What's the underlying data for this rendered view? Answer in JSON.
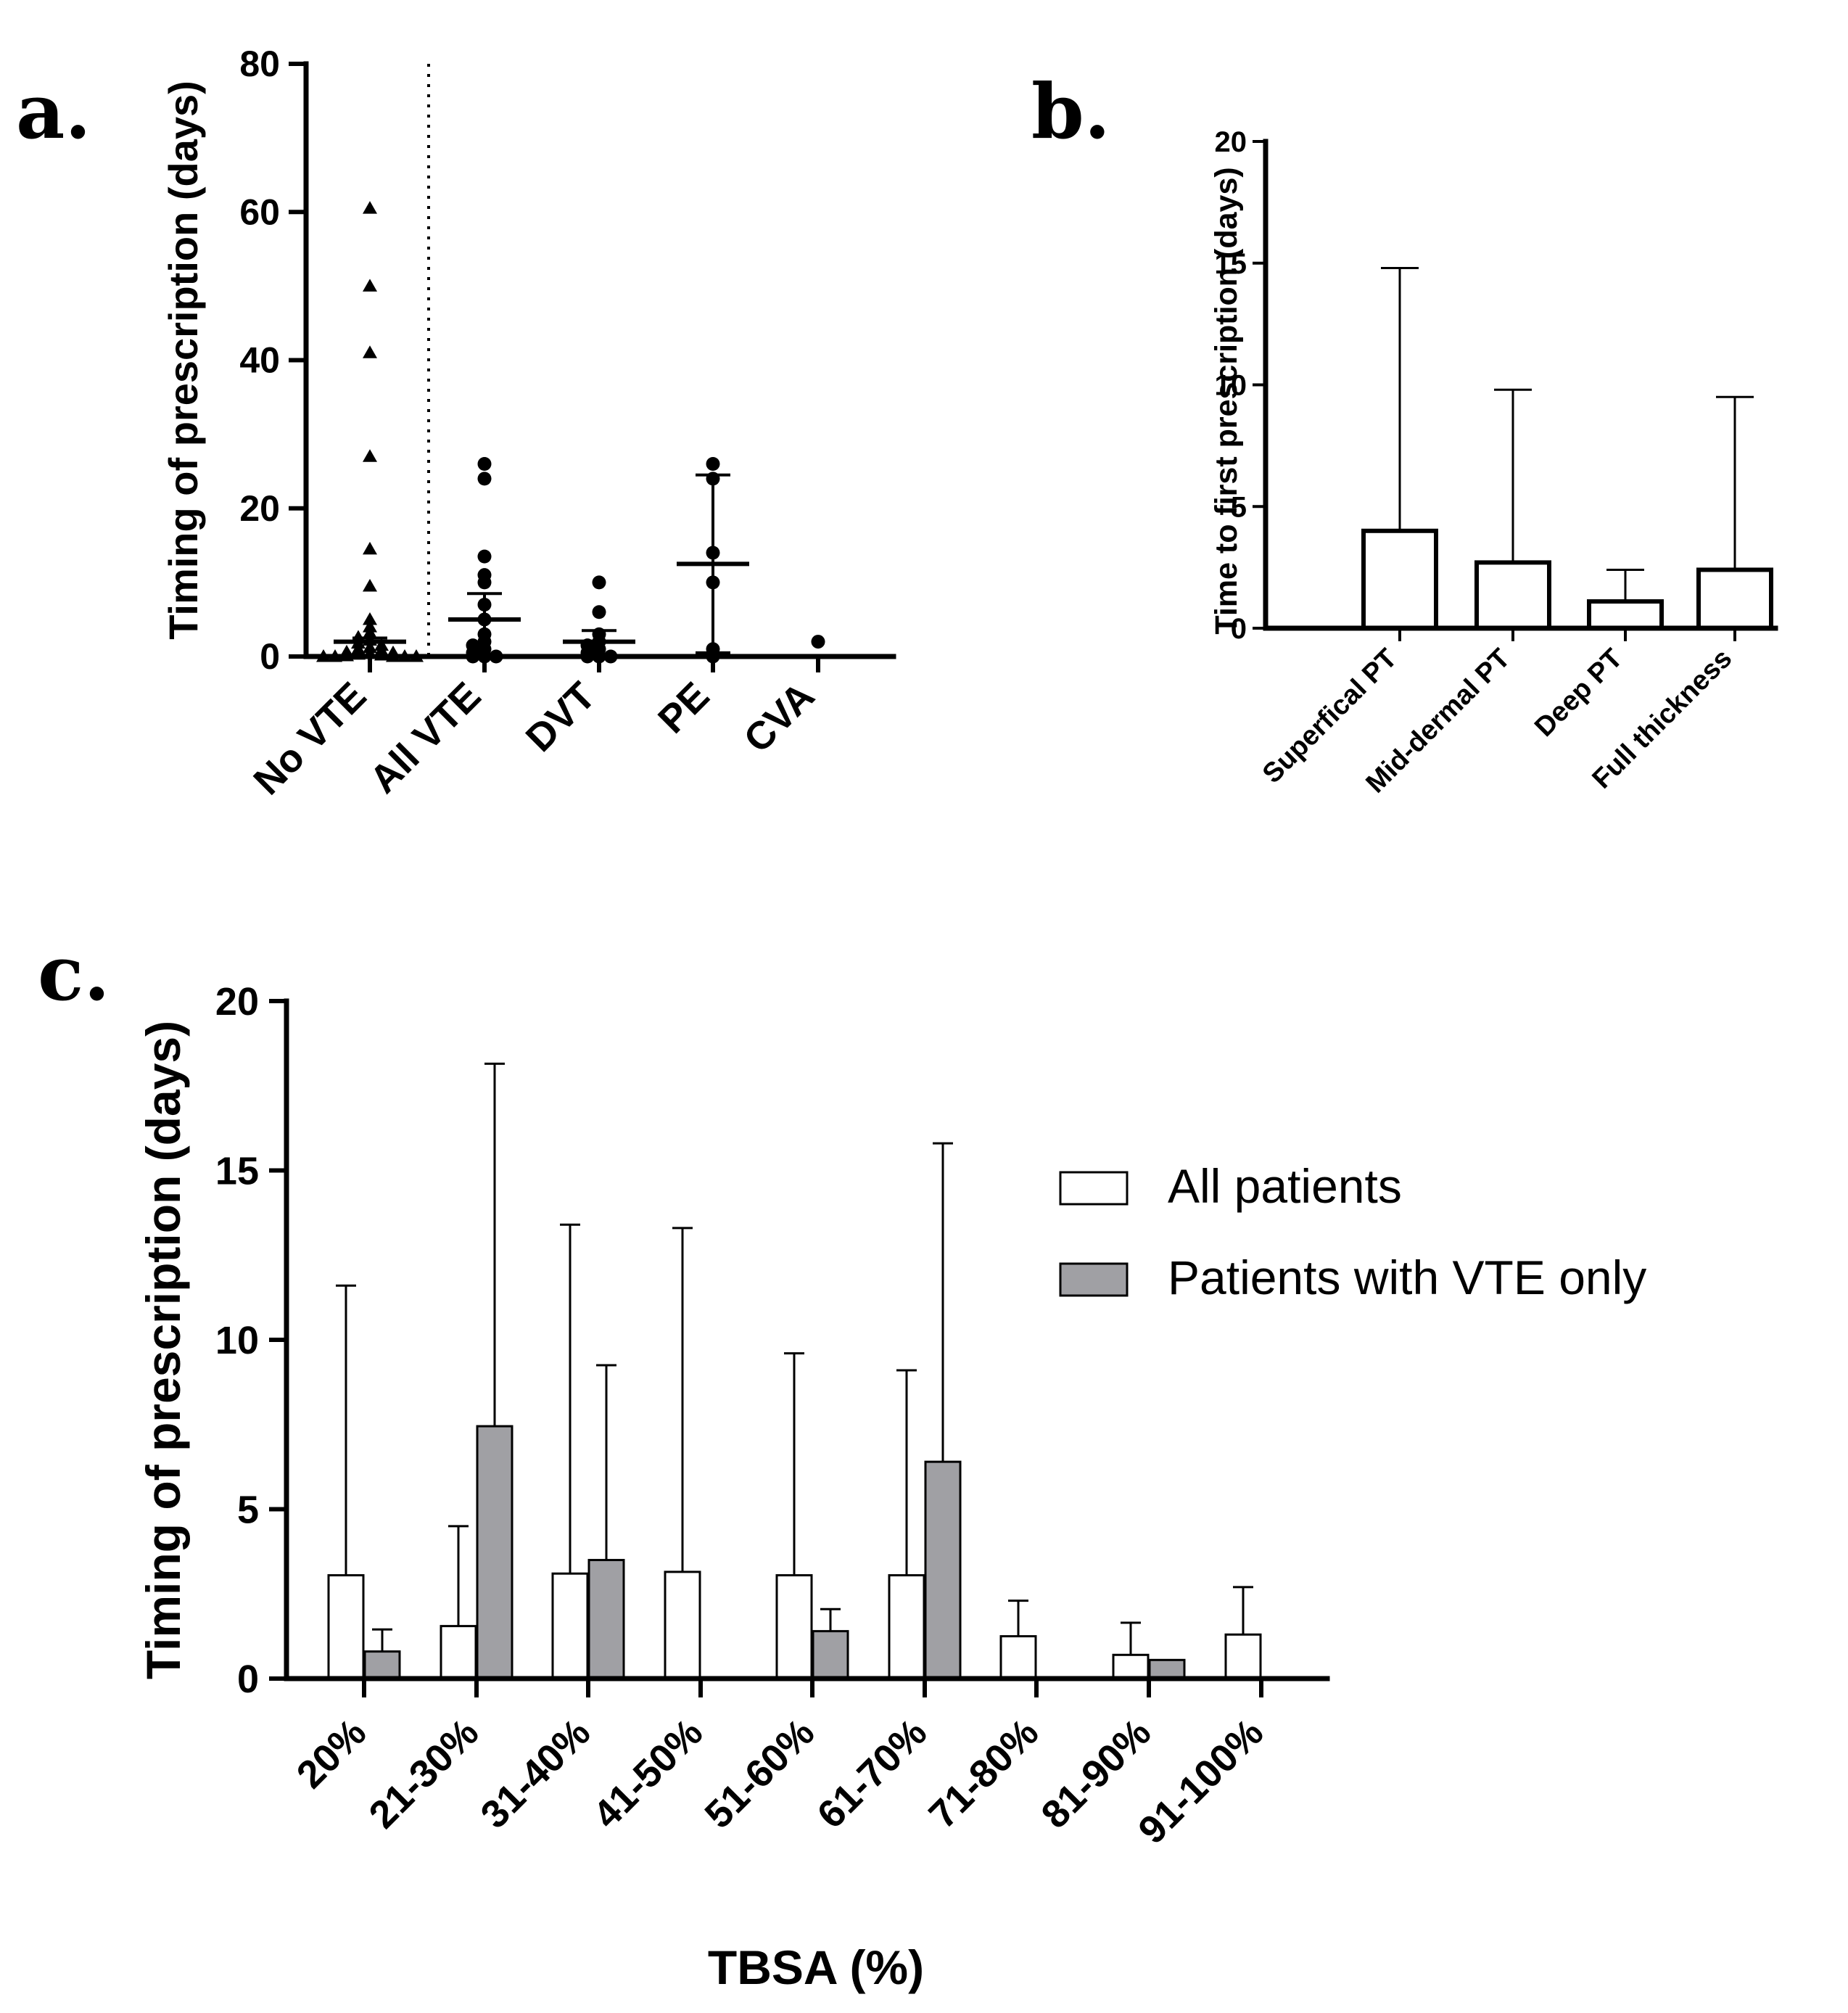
{
  "panel_labels": {
    "a": "a.",
    "b": "b.",
    "c": "c."
  },
  "chart_data": [
    {
      "id": "a",
      "type": "scatter",
      "ylabel": "Timing of prescription (days)",
      "xlabel": "",
      "ylim": [
        0,
        80
      ],
      "yticks": [
        0,
        20,
        40,
        60,
        80
      ],
      "categories": [
        "No VTE",
        "All VTE",
        "DVT",
        "PE",
        "CVA"
      ],
      "separator_after_category": "No VTE",
      "groups": [
        {
          "name": "No VTE",
          "marker": "triangle",
          "mean": 2.0,
          "sd_upper": 2.5,
          "sd_lower": 0,
          "points": [
            60.5,
            50,
            41,
            27,
            14.5,
            9.5,
            5,
            4,
            3.2,
            2.6,
            2.2,
            1.8,
            1.5,
            1.2,
            1.0,
            0.8,
            0.6,
            0.5,
            0.4,
            0.3,
            0.2,
            0.1,
            0,
            0,
            0,
            0,
            0
          ]
        },
        {
          "name": "All VTE",
          "marker": "circle",
          "mean": 5.0,
          "sd_upper": 8.5,
          "sd_lower": 0,
          "points": [
            26,
            24,
            13.5,
            11,
            10,
            7,
            5,
            3,
            2,
            1.5,
            1,
            0.5,
            0,
            0,
            0
          ]
        },
        {
          "name": "DVT",
          "marker": "circle",
          "mean": 2.0,
          "sd_upper": 3.5,
          "sd_lower": 0,
          "points": [
            10,
            6,
            3,
            2,
            1.5,
            1,
            0.5,
            0,
            0,
            0
          ]
        },
        {
          "name": "PE",
          "marker": "circle",
          "mean": 12.5,
          "sd_upper": 24.5,
          "sd_lower": 0.5,
          "points": [
            26,
            24,
            14,
            10,
            1,
            0
          ]
        },
        {
          "name": "CVA",
          "marker": "circle",
          "mean": null,
          "sd_upper": null,
          "sd_lower": null,
          "points": [
            2
          ]
        }
      ]
    },
    {
      "id": "b",
      "type": "bar",
      "ylabel": "Time to first prescription  (days)",
      "xlabel": "",
      "ylim": [
        0,
        20
      ],
      "yticks": [
        0,
        5,
        10,
        15,
        20
      ],
      "categories": [
        "Superfical PT",
        "Mid-dermal PT",
        "Deep PT",
        "Full thickness"
      ],
      "values": [
        4.0,
        2.7,
        1.1,
        2.4
      ],
      "error_upper": [
        14.8,
        9.8,
        2.4,
        9.5
      ]
    },
    {
      "id": "c",
      "type": "bar",
      "ylabel": "Timing of prescription (days)",
      "xlabel": "TBSA (%)",
      "ylim": [
        0,
        20
      ],
      "yticks": [
        0,
        5,
        10,
        15,
        20
      ],
      "categories": [
        "20%",
        "21-30%",
        "31-40%",
        "41-50%",
        "51-60%",
        "61-70%",
        "71-80%",
        "81-90%",
        "91-100%"
      ],
      "series": [
        {
          "name": "All patients",
          "color": "#ffffff",
          "values": [
            3.05,
            1.55,
            3.1,
            3.15,
            3.05,
            3.05,
            1.25,
            0.7,
            1.3
          ],
          "error_upper": [
            11.6,
            4.5,
            13.4,
            13.3,
            9.6,
            9.1,
            2.3,
            1.65,
            2.7
          ]
        },
        {
          "name": "Patients with VTE only",
          "color": "#a0a0a4",
          "values": [
            0.8,
            7.45,
            3.5,
            null,
            1.4,
            6.4,
            null,
            0.55,
            null
          ],
          "error_upper": [
            1.45,
            18.15,
            9.25,
            null,
            2.05,
            15.8,
            null,
            null,
            null
          ]
        }
      ],
      "legend_position": "top-right"
    }
  ]
}
